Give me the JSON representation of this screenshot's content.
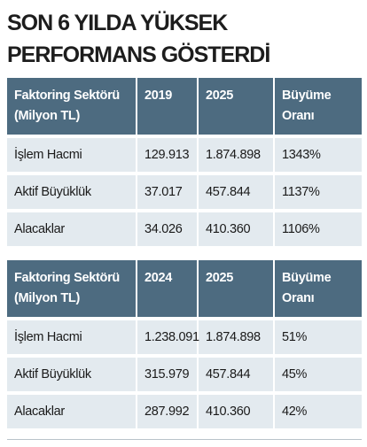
{
  "title": [
    "SON 6 YILDA YÜKSEK",
    "PERFORMANS GÖSTERDİ"
  ],
  "tables": [
    {
      "header": [
        "Faktoring Sektörü (Milyon TL)",
        "2019",
        "2025",
        "Büyüme Oranı"
      ],
      "rows": [
        [
          "İşlem Hacmi",
          "129.913",
          "1.874.898",
          "1343%"
        ],
        [
          "Aktif Büyüklük",
          "37.017",
          "457.844",
          "1137%"
        ],
        [
          "Alacaklar",
          "34.026",
          "410.360",
          "1106%"
        ]
      ]
    },
    {
      "header": [
        "Faktoring Sektörü (Milyon TL)",
        "2024",
        "2025",
        "Büyüme Oranı"
      ],
      "rows": [
        [
          "İşlem Hacmi",
          "1.238.091",
          "1.874.898",
          "51%"
        ],
        [
          "Aktif Büyüklük",
          "315.979",
          "457.844",
          "45%"
        ],
        [
          "Alacaklar",
          "287.992",
          "410.360",
          "42%"
        ]
      ]
    }
  ]
}
